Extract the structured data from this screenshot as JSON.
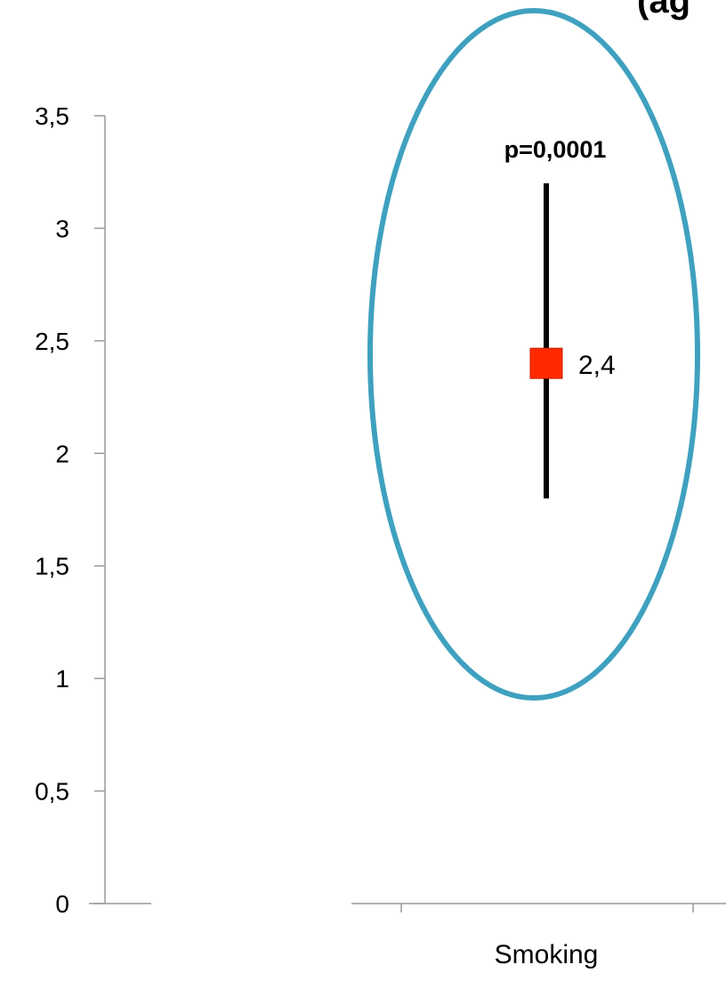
{
  "chart_data": {
    "type": "scatter",
    "title": "(ag",
    "xlabel": "",
    "ylabel": "",
    "ylim": [
      0,
      3.5
    ],
    "y_ticks": [
      "0",
      "0,5",
      "1",
      "1,5",
      "2",
      "2,5",
      "3",
      "3,5"
    ],
    "categories": [
      "Smoking"
    ],
    "points": [
      {
        "category": "Smoking",
        "value": 2.4,
        "value_label": "2,4",
        "ci_low": 1.8,
        "ci_high": 3.2,
        "p_label": "p=0,0001",
        "marker_color": "#ff2a00",
        "highlighted": true
      }
    ],
    "grid": false,
    "legend": "none"
  },
  "colors": {
    "highlight_ellipse": "#3fa1bf",
    "marker": "#ff2a00",
    "axis": "#999999",
    "error_bar": "#000000"
  }
}
